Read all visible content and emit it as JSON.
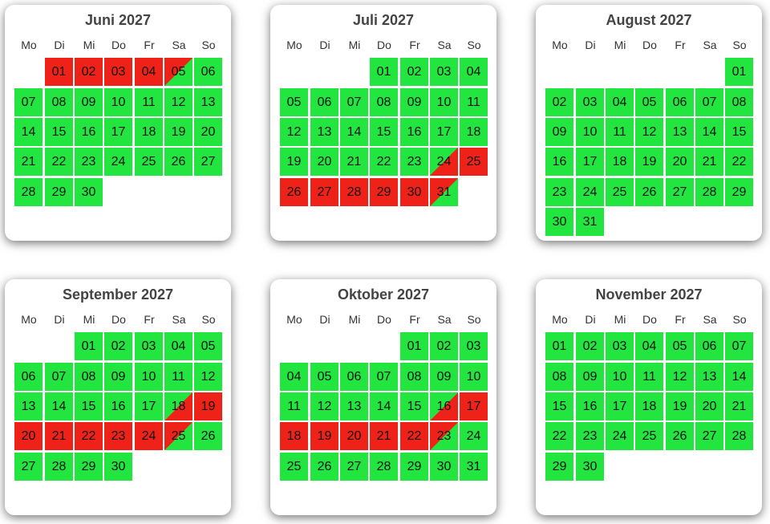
{
  "weekdays": [
    "Mo",
    "Di",
    "Mi",
    "Do",
    "Fr",
    "Sa",
    "So"
  ],
  "colors": {
    "free": "#22e53f",
    "booked": "#ee2218"
  },
  "months": [
    {
      "title": "Juni 2027",
      "offset": 1,
      "days": 30,
      "status": {
        "1": "booked",
        "2": "booked",
        "3": "booked",
        "4": "booked",
        "5": "departure"
      }
    },
    {
      "title": "Juli 2027",
      "offset": 3,
      "days": 31,
      "status": {
        "24": "arrival",
        "25": "booked",
        "26": "booked",
        "27": "booked",
        "28": "booked",
        "29": "booked",
        "30": "booked",
        "31": "departure"
      }
    },
    {
      "title": "August 2027",
      "offset": 6,
      "days": 31,
      "status": {}
    },
    {
      "title": "September 2027",
      "offset": 2,
      "days": 30,
      "status": {
        "18": "arrival",
        "19": "booked",
        "20": "booked",
        "21": "booked",
        "22": "booked",
        "23": "booked",
        "24": "booked",
        "25": "departure"
      }
    },
    {
      "title": "Oktober 2027",
      "offset": 4,
      "days": 31,
      "status": {
        "16": "arrival",
        "17": "booked",
        "18": "booked",
        "19": "booked",
        "20": "booked",
        "21": "booked",
        "22": "booked",
        "23": "departure"
      }
    },
    {
      "title": "November 2027",
      "offset": 0,
      "days": 30,
      "status": {}
    }
  ]
}
